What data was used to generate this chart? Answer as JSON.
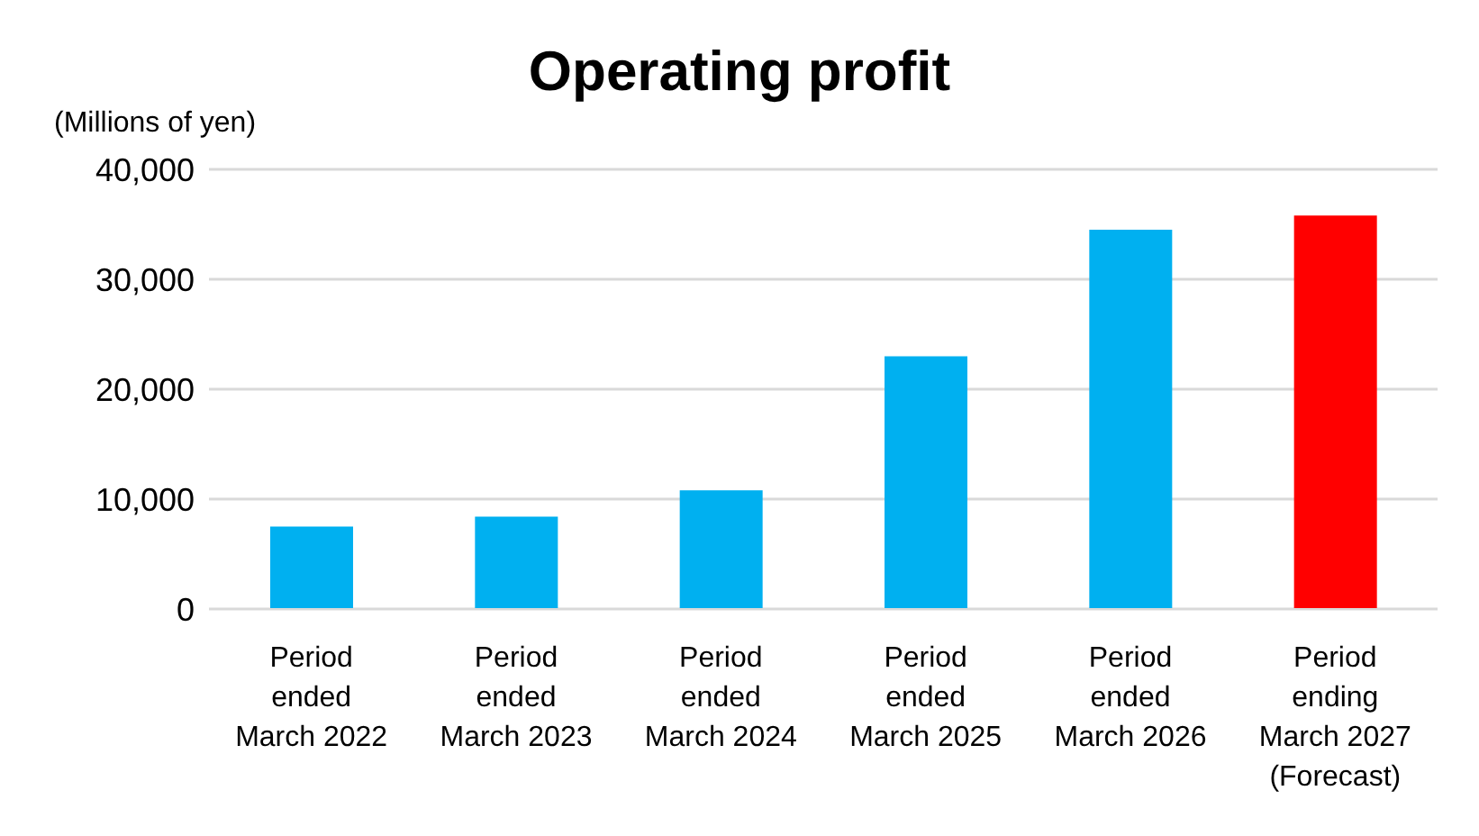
{
  "chart_data": {
    "type": "bar",
    "title": "Operating profit",
    "ylabel": "(Millions of yen)",
    "categories": [
      "Period\nended\nMarch 2022",
      "Period\nended\nMarch 2023",
      "Period\nended\nMarch 2024",
      "Period\nended\nMarch 2025",
      "Period\nended\nMarch 2026",
      "Period\nending\nMarch 2027\n(Forecast)"
    ],
    "values": [
      7500,
      8400,
      10800,
      23000,
      34500,
      35800
    ],
    "colors": [
      "#00b0f0",
      "#00b0f0",
      "#00b0f0",
      "#00b0f0",
      "#00b0f0",
      "#ff0000"
    ],
    "ylim": [
      0,
      40000
    ],
    "yticks": [
      0,
      {
        "value": 10000,
        "label": "10,000"
      },
      {
        "value": 20000,
        "label": "20,000"
      },
      {
        "value": 30000,
        "label": "30,000"
      },
      {
        "value": 40000,
        "label": "40,000"
      }
    ],
    "grid": "y"
  }
}
